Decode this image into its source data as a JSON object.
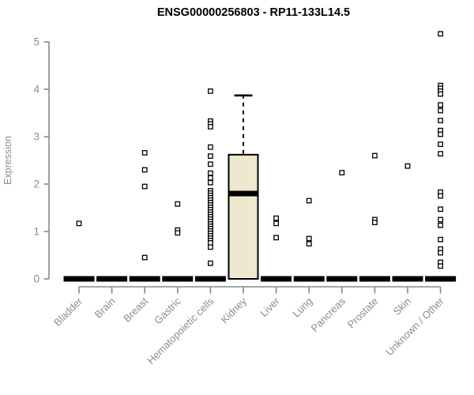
{
  "page": {
    "background": "#ffffff"
  },
  "chart_data": {
    "type": "boxplot",
    "title": "ENSG00000256803 - RP11-133L14.5",
    "ylabel": "Expression",
    "xlabel": "",
    "ylim": [
      0,
      5
    ],
    "yticks": [
      0,
      1,
      2,
      3,
      4,
      5
    ],
    "grid": false,
    "legend_position": "none",
    "outlier_marker": "open-square",
    "colors": {
      "box_fill": "#EDE8CE",
      "box_border": "#000000",
      "median": "#000000",
      "zero_bar": "#000000",
      "axis_line": "#888888",
      "tick_label": "#8c8c8c",
      "axis_label": "#8c8c8c",
      "title": "#000000",
      "outlier_stroke": "#000000",
      "outlier_fill": "#ffffff"
    },
    "categories": [
      "Bladder",
      "Brain",
      "Breast",
      "Gastric",
      "Hematopoietic cells",
      "Kidney",
      "Liver",
      "Lung",
      "Pancreas",
      "Prostate",
      "Skin",
      "Unknown / Other"
    ],
    "boxes": [
      {
        "category": "Bladder",
        "q1": 0,
        "median": 0,
        "q3": 0,
        "whisker_low": 0,
        "whisker_high": 0,
        "outliers": [
          1.17
        ]
      },
      {
        "category": "Brain",
        "q1": 0,
        "median": 0,
        "q3": 0,
        "whisker_low": 0,
        "whisker_high": 0,
        "outliers": []
      },
      {
        "category": "Breast",
        "q1": 0,
        "median": 0,
        "q3": 0,
        "whisker_low": 0,
        "whisker_high": 0,
        "outliers": [
          2.66,
          2.3,
          1.95,
          0.45
        ]
      },
      {
        "category": "Gastric",
        "q1": 0,
        "median": 0,
        "q3": 0,
        "whisker_low": 0,
        "whisker_high": 0,
        "outliers": [
          1.58,
          1.03,
          0.97
        ]
      },
      {
        "category": "Hematopoietic cells",
        "q1": 0,
        "median": 0,
        "q3": 0,
        "whisker_low": 0,
        "whisker_high": 0,
        "outliers": [
          3.96,
          3.33,
          3.27,
          3.21,
          2.78,
          2.59,
          2.42,
          2.23,
          2.13,
          2.03,
          1.86,
          1.81,
          1.76,
          1.71,
          1.66,
          1.61,
          1.56,
          1.51,
          1.46,
          1.41,
          1.36,
          1.31,
          1.26,
          1.21,
          1.16,
          1.11,
          1.06,
          1.01,
          0.96,
          0.91,
          0.86,
          0.81,
          0.76,
          0.67,
          0.33
        ]
      },
      {
        "category": "Kidney",
        "q1": 0,
        "median": 1.8,
        "q3": 2.62,
        "whisker_low": 0,
        "whisker_high": 3.87,
        "outliers": []
      },
      {
        "category": "Liver",
        "q1": 0,
        "median": 0,
        "q3": 0,
        "whisker_low": 0,
        "whisker_high": 0,
        "outliers": [
          1.28,
          1.17,
          0.87
        ]
      },
      {
        "category": "Lung",
        "q1": 0,
        "median": 0,
        "q3": 0,
        "whisker_low": 0,
        "whisker_high": 0,
        "outliers": [
          1.65,
          0.85,
          0.74
        ]
      },
      {
        "category": "Pancreas",
        "q1": 0,
        "median": 0,
        "q3": 0,
        "whisker_low": 0,
        "whisker_high": 0,
        "outliers": [
          2.24
        ]
      },
      {
        "category": "Prostate",
        "q1": 0,
        "median": 0,
        "q3": 0,
        "whisker_low": 0,
        "whisker_high": 0,
        "outliers": [
          2.6,
          1.25,
          1.19
        ]
      },
      {
        "category": "Skin",
        "q1": 0,
        "median": 0,
        "q3": 0,
        "whisker_low": 0,
        "whisker_high": 0,
        "outliers": [
          2.38
        ]
      },
      {
        "category": "Unknown / Other",
        "q1": 0,
        "median": 0,
        "q3": 0,
        "whisker_low": 0,
        "whisker_high": 0,
        "outliers": [
          5.17,
          4.08,
          4.02,
          3.96,
          3.9,
          3.67,
          3.55,
          3.34,
          3.13,
          3.05,
          2.84,
          2.64,
          1.83,
          1.75,
          1.47,
          1.25,
          1.13,
          0.83,
          0.63,
          0.55,
          0.35,
          0.27
        ]
      }
    ]
  }
}
